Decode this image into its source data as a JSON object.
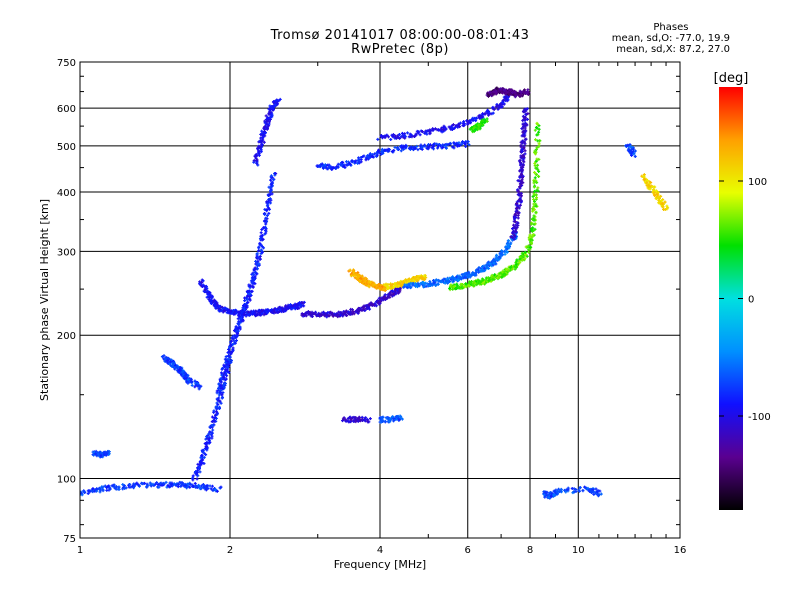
{
  "title_line1": "Tromsø 20141017 08:00:00-08:01:43",
  "title_line2": "RwPretec (8p)",
  "phase_info": {
    "heading": "Phases",
    "line1": "mean, sd,O: -77.0, 19.9",
    "line2": "mean, sd,X: 87.2, 27.0"
  },
  "chart_data": {
    "type": "scatter",
    "xlabel": "Frequency [MHz]",
    "ylabel": "Stationary phase Virtual Height [km]",
    "x_scale": "log",
    "y_scale": "log",
    "xlim": [
      1,
      16
    ],
    "ylim": [
      75,
      750
    ],
    "x_ticks": [
      1,
      2,
      4,
      6,
      8,
      10,
      16
    ],
    "y_ticks": [
      75,
      100,
      200,
      300,
      400,
      500,
      600,
      750
    ],
    "grid": true,
    "colorbar": {
      "label": "[deg]",
      "min": -180,
      "max": 180,
      "ticks": [
        100,
        0,
        -100
      ],
      "colormap": [
        "#000000",
        "#5a0090",
        "#1010ff",
        "#0090ff",
        "#00e0e0",
        "#00e000",
        "#e8ff00",
        "#ffa000",
        "#ff0000"
      ]
    },
    "traces": [
      {
        "name": "",
        "x": [
          1.0,
          1.1,
          1.2,
          1.35,
          1.5,
          1.62,
          1.75,
          1.9
        ],
        "y": [
          93,
          95,
          96,
          97,
          97,
          97,
          96,
          95
        ],
        "phase": -75
      },
      {
        "name": "",
        "x": [
          1.07,
          1.1,
          1.14
        ],
        "y": [
          113,
          112,
          113
        ],
        "phase": -70
      },
      {
        "name": "",
        "x": [
          1.48,
          1.52,
          1.58,
          1.62,
          1.66,
          1.74
        ],
        "y": [
          180,
          175,
          170,
          166,
          160,
          156
        ],
        "phase": -75
      },
      {
        "name": "",
        "x": [
          1.7,
          1.75,
          1.8,
          1.85,
          1.9,
          1.95,
          2.0
        ],
        "y": [
          100,
          108,
          118,
          130,
          145,
          160,
          178
        ],
        "phase": -85
      },
      {
        "name": "",
        "x": [
          1.9,
          1.95,
          2.0,
          2.05,
          2.1,
          2.15,
          2.2,
          2.25,
          2.3,
          2.35,
          2.4,
          2.45
        ],
        "y": [
          150,
          170,
          185,
          200,
          215,
          232,
          250,
          272,
          300,
          340,
          390,
          440
        ],
        "phase": -85
      },
      {
        "name": "",
        "x": [
          2.25,
          2.3,
          2.35,
          2.4,
          2.45,
          2.5
        ],
        "y": [
          460,
          500,
          540,
          580,
          610,
          620
        ],
        "phase": -95
      },
      {
        "name": "",
        "x": [
          1.75,
          1.8,
          1.85,
          1.9,
          2.0,
          2.1,
          2.2,
          2.3,
          2.4,
          2.5,
          2.6,
          2.7,
          2.8
        ],
        "y": [
          260,
          245,
          235,
          228,
          224,
          222,
          222,
          223,
          224,
          226,
          228,
          230,
          232
        ],
        "phase": -95
      },
      {
        "name": "",
        "x": [
          2.8,
          3.0,
          3.2,
          3.4,
          3.6,
          3.8,
          4.0,
          4.2,
          4.4
        ],
        "y": [
          222,
          221,
          221,
          222,
          225,
          230,
          236,
          244,
          250
        ],
        "phase": -110
      },
      {
        "name": "",
        "x": [
          3.5,
          3.6,
          3.7,
          3.8,
          3.9,
          4.0,
          4.1
        ],
        "y": [
          272,
          266,
          261,
          257,
          254,
          252,
          251
        ],
        "phase": 130
      },
      {
        "name": "",
        "x": [
          4.1,
          4.3,
          4.5,
          4.7,
          4.9
        ],
        "y": [
          253,
          255,
          258,
          262,
          265
        ],
        "phase": 110
      },
      {
        "name": "",
        "x": [
          4.5,
          4.8,
          5.1,
          5.4,
          5.7,
          6.0,
          6.3,
          6.6,
          6.9,
          7.2,
          7.5
        ],
        "y": [
          253,
          255,
          257,
          260,
          263,
          267,
          272,
          280,
          290,
          305,
          330
        ],
        "phase": -60
      },
      {
        "name": "",
        "x": [
          5.5,
          5.8,
          6.1,
          6.4,
          6.7,
          7.0,
          7.3,
          7.6,
          7.9,
          8.1,
          8.2,
          8.25,
          8.3
        ],
        "y": [
          252,
          254,
          256,
          259,
          263,
          268,
          275,
          285,
          300,
          330,
          380,
          450,
          560
        ],
        "phase": 60
      },
      {
        "name": "",
        "x": [
          7.4,
          7.5,
          7.6,
          7.65,
          7.7,
          7.75,
          7.8,
          7.85
        ],
        "y": [
          320,
          350,
          380,
          420,
          460,
          500,
          550,
          600
        ],
        "phase": -110
      },
      {
        "name": "",
        "x": [
          3.0,
          3.2,
          3.5,
          3.8,
          4.1,
          4.5,
          5.0,
          5.5,
          6.0
        ],
        "y": [
          455,
          450,
          460,
          475,
          488,
          495,
          498,
          500,
          505
        ],
        "phase": -80
      },
      {
        "name": "",
        "x": [
          4.0,
          4.5,
          5.0,
          5.5,
          6.0,
          6.5,
          7.0,
          7.3
        ],
        "y": [
          520,
          525,
          535,
          545,
          560,
          580,
          610,
          640
        ],
        "phase": -95
      },
      {
        "name": "",
        "x": [
          6.6,
          6.8,
          7.0,
          7.2,
          7.4,
          7.6,
          7.9
        ],
        "y": [
          640,
          650,
          655,
          650,
          645,
          640,
          650
        ],
        "phase": -140
      },
      {
        "name": "",
        "x": [
          6.1,
          6.3,
          6.5
        ],
        "y": [
          540,
          550,
          565
        ],
        "phase": 50
      },
      {
        "name": "",
        "x": [
          3.4,
          3.6,
          3.8
        ],
        "y": [
          133,
          133,
          133
        ],
        "phase": -110
      },
      {
        "name": "",
        "x": [
          4.0,
          4.2,
          4.4
        ],
        "y": [
          133,
          133,
          134
        ],
        "phase": -70
      },
      {
        "name": "",
        "x": [
          8.5,
          8.8,
          9.1,
          10.5,
          11.0
        ],
        "y": [
          93,
          92,
          94,
          95,
          93
        ],
        "phase": -70
      },
      {
        "name": "",
        "x": [
          12.5,
          13.0
        ],
        "y": [
          500,
          480
        ],
        "phase": -70
      },
      {
        "name": "",
        "x": [
          13.5,
          14.0,
          14.5,
          15.0
        ],
        "y": [
          430,
          410,
          390,
          370
        ],
        "phase": 110
      }
    ]
  }
}
